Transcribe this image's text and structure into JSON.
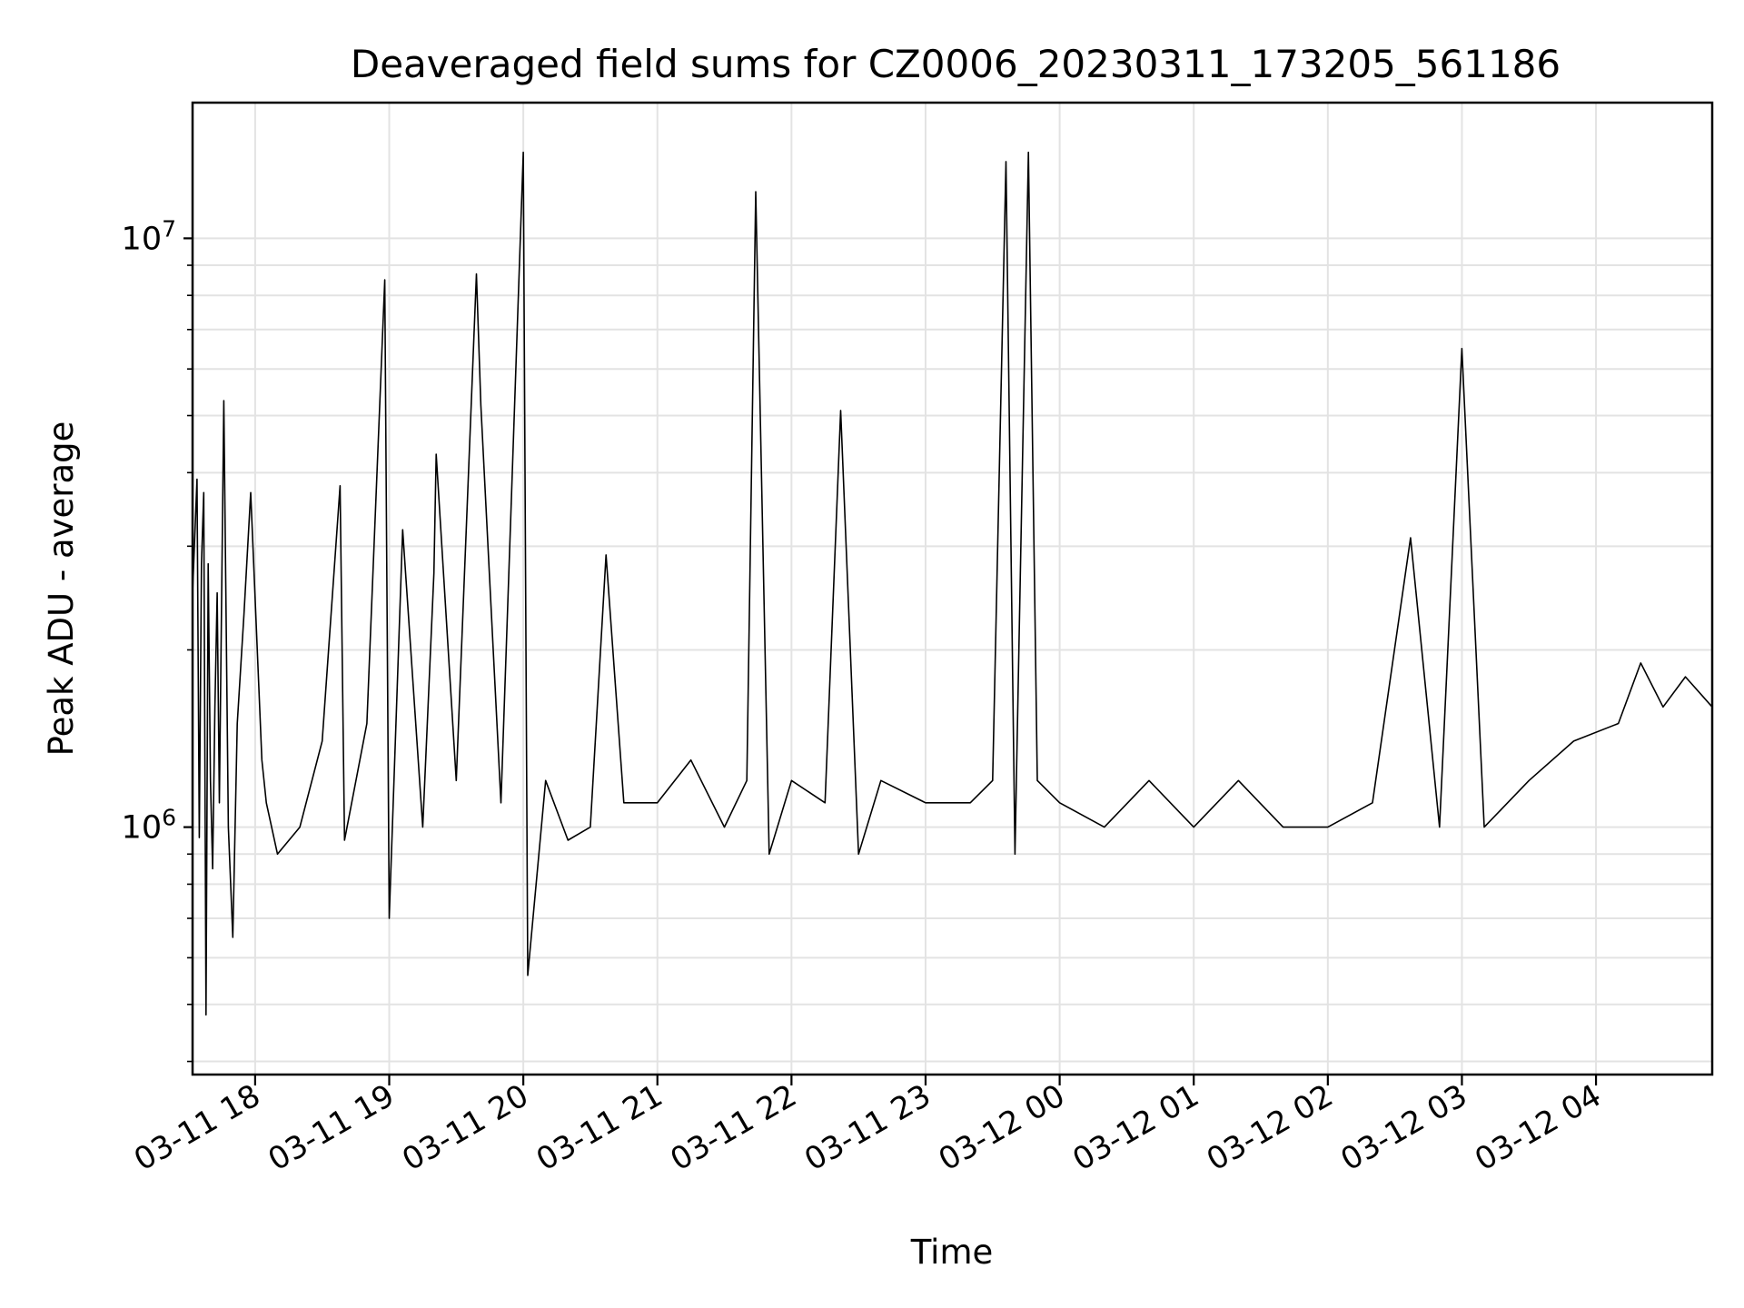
{
  "chart_data": {
    "type": "line",
    "title": "Deaveraged field sums for CZ0006_20230311_173205_561186",
    "xlabel": "Time",
    "ylabel": "Peak ADU - average",
    "yscale": "log",
    "ylim": [
      380000,
      17000000
    ],
    "xlim": [
      "2023-03-11 17:32",
      "2023-03-12 04:52"
    ],
    "grid": true,
    "line_color": "#000000",
    "x_ticks": [
      {
        "time": "2023-03-11 18:00",
        "label": "03-11 18"
      },
      {
        "time": "2023-03-11 19:00",
        "label": "03-11 19"
      },
      {
        "time": "2023-03-11 20:00",
        "label": "03-11 20"
      },
      {
        "time": "2023-03-11 21:00",
        "label": "03-11 21"
      },
      {
        "time": "2023-03-11 22:00",
        "label": "03-11 22"
      },
      {
        "time": "2023-03-11 23:00",
        "label": "03-11 23"
      },
      {
        "time": "2023-03-12 00:00",
        "label": "03-12 00"
      },
      {
        "time": "2023-03-12 01:00",
        "label": "03-12 01"
      },
      {
        "time": "2023-03-12 02:00",
        "label": "03-12 02"
      },
      {
        "time": "2023-03-12 03:00",
        "label": "03-12 03"
      },
      {
        "time": "2023-03-12 04:00",
        "label": "03-12 04"
      }
    ],
    "y_ticks": [
      {
        "value": 1000000,
        "base": "10",
        "exp": "6"
      },
      {
        "value": 10000000,
        "base": "10",
        "exp": "7"
      }
    ],
    "series": [
      {
        "x": [
          "2023-03-11 17:32",
          "2023-03-11 17:34",
          "2023-03-11 17:35",
          "2023-03-11 17:36",
          "2023-03-11 17:37",
          "2023-03-11 17:38",
          "2023-03-11 17:39",
          "2023-03-11 17:40",
          "2023-03-11 17:41",
          "2023-03-11 17:42",
          "2023-03-11 17:43",
          "2023-03-11 17:44",
          "2023-03-11 17:46",
          "2023-03-11 17:48",
          "2023-03-11 17:50",
          "2023-03-11 17:52",
          "2023-03-11 17:55",
          "2023-03-11 17:58",
          "2023-03-11 18:03",
          "2023-03-11 18:05",
          "2023-03-11 18:10",
          "2023-03-11 18:20",
          "2023-03-11 18:30",
          "2023-03-11 18:38",
          "2023-03-11 18:40",
          "2023-03-11 18:50",
          "2023-03-11 18:58",
          "2023-03-11 19:00",
          "2023-03-11 19:06",
          "2023-03-11 19:15",
          "2023-03-11 19:20",
          "2023-03-11 19:21",
          "2023-03-11 19:30",
          "2023-03-11 19:39",
          "2023-03-11 19:41",
          "2023-03-11 19:50",
          "2023-03-11 20:00",
          "2023-03-11 20:02",
          "2023-03-11 20:10",
          "2023-03-11 20:20",
          "2023-03-11 20:30",
          "2023-03-11 20:37",
          "2023-03-11 20:45",
          "2023-03-11 21:00",
          "2023-03-11 21:15",
          "2023-03-11 21:30",
          "2023-03-11 21:40",
          "2023-03-11 21:44",
          "2023-03-11 21:50",
          "2023-03-11 22:00",
          "2023-03-11 22:15",
          "2023-03-11 22:22",
          "2023-03-11 22:30",
          "2023-03-11 22:40",
          "2023-03-11 23:00",
          "2023-03-11 23:20",
          "2023-03-11 23:30",
          "2023-03-11 23:36",
          "2023-03-11 23:40",
          "2023-03-11 23:46",
          "2023-03-11 23:50",
          "2023-03-12 00:00",
          "2023-03-12 00:20",
          "2023-03-12 00:40",
          "2023-03-12 01:00",
          "2023-03-12 01:20",
          "2023-03-12 01:40",
          "2023-03-12 02:00",
          "2023-03-12 02:20",
          "2023-03-12 02:37",
          "2023-03-12 02:50",
          "2023-03-12 03:00",
          "2023-03-12 03:10",
          "2023-03-12 03:30",
          "2023-03-12 03:50",
          "2023-03-12 04:10",
          "2023-03-12 04:20",
          "2023-03-12 04:30",
          "2023-03-12 04:40",
          "2023-03-12 04:52"
        ],
        "values": [
          2500000,
          3900000,
          960000,
          2800000,
          3700000,
          480000,
          2800000,
          1200000,
          850000,
          1600000,
          2500000,
          1100000,
          5300000,
          1000000,
          650000,
          1500000,
          2300000,
          3700000,
          1300000,
          1100000,
          900000,
          1000000,
          1400000,
          3800000,
          950000,
          1500000,
          8500000,
          700000,
          3200000,
          1000000,
          2700000,
          4300000,
          1200000,
          8700000,
          5200000,
          1100000,
          14000000,
          560000,
          1200000,
          950000,
          1000000,
          2900000,
          1100000,
          1100000,
          1300000,
          1000000,
          1200000,
          12000000,
          900000,
          1200000,
          1100000,
          5100000,
          900000,
          1200000,
          1100000,
          1100000,
          1200000,
          13500000,
          900000,
          14000000,
          1200000,
          1100000,
          1000000,
          1200000,
          1000000,
          1200000,
          1000000,
          1000000,
          1100000,
          3100000,
          1000000,
          6500000,
          1000000,
          1200000,
          1400000,
          1500000,
          1900000,
          1600000,
          1800000,
          1600000
        ]
      }
    ]
  }
}
